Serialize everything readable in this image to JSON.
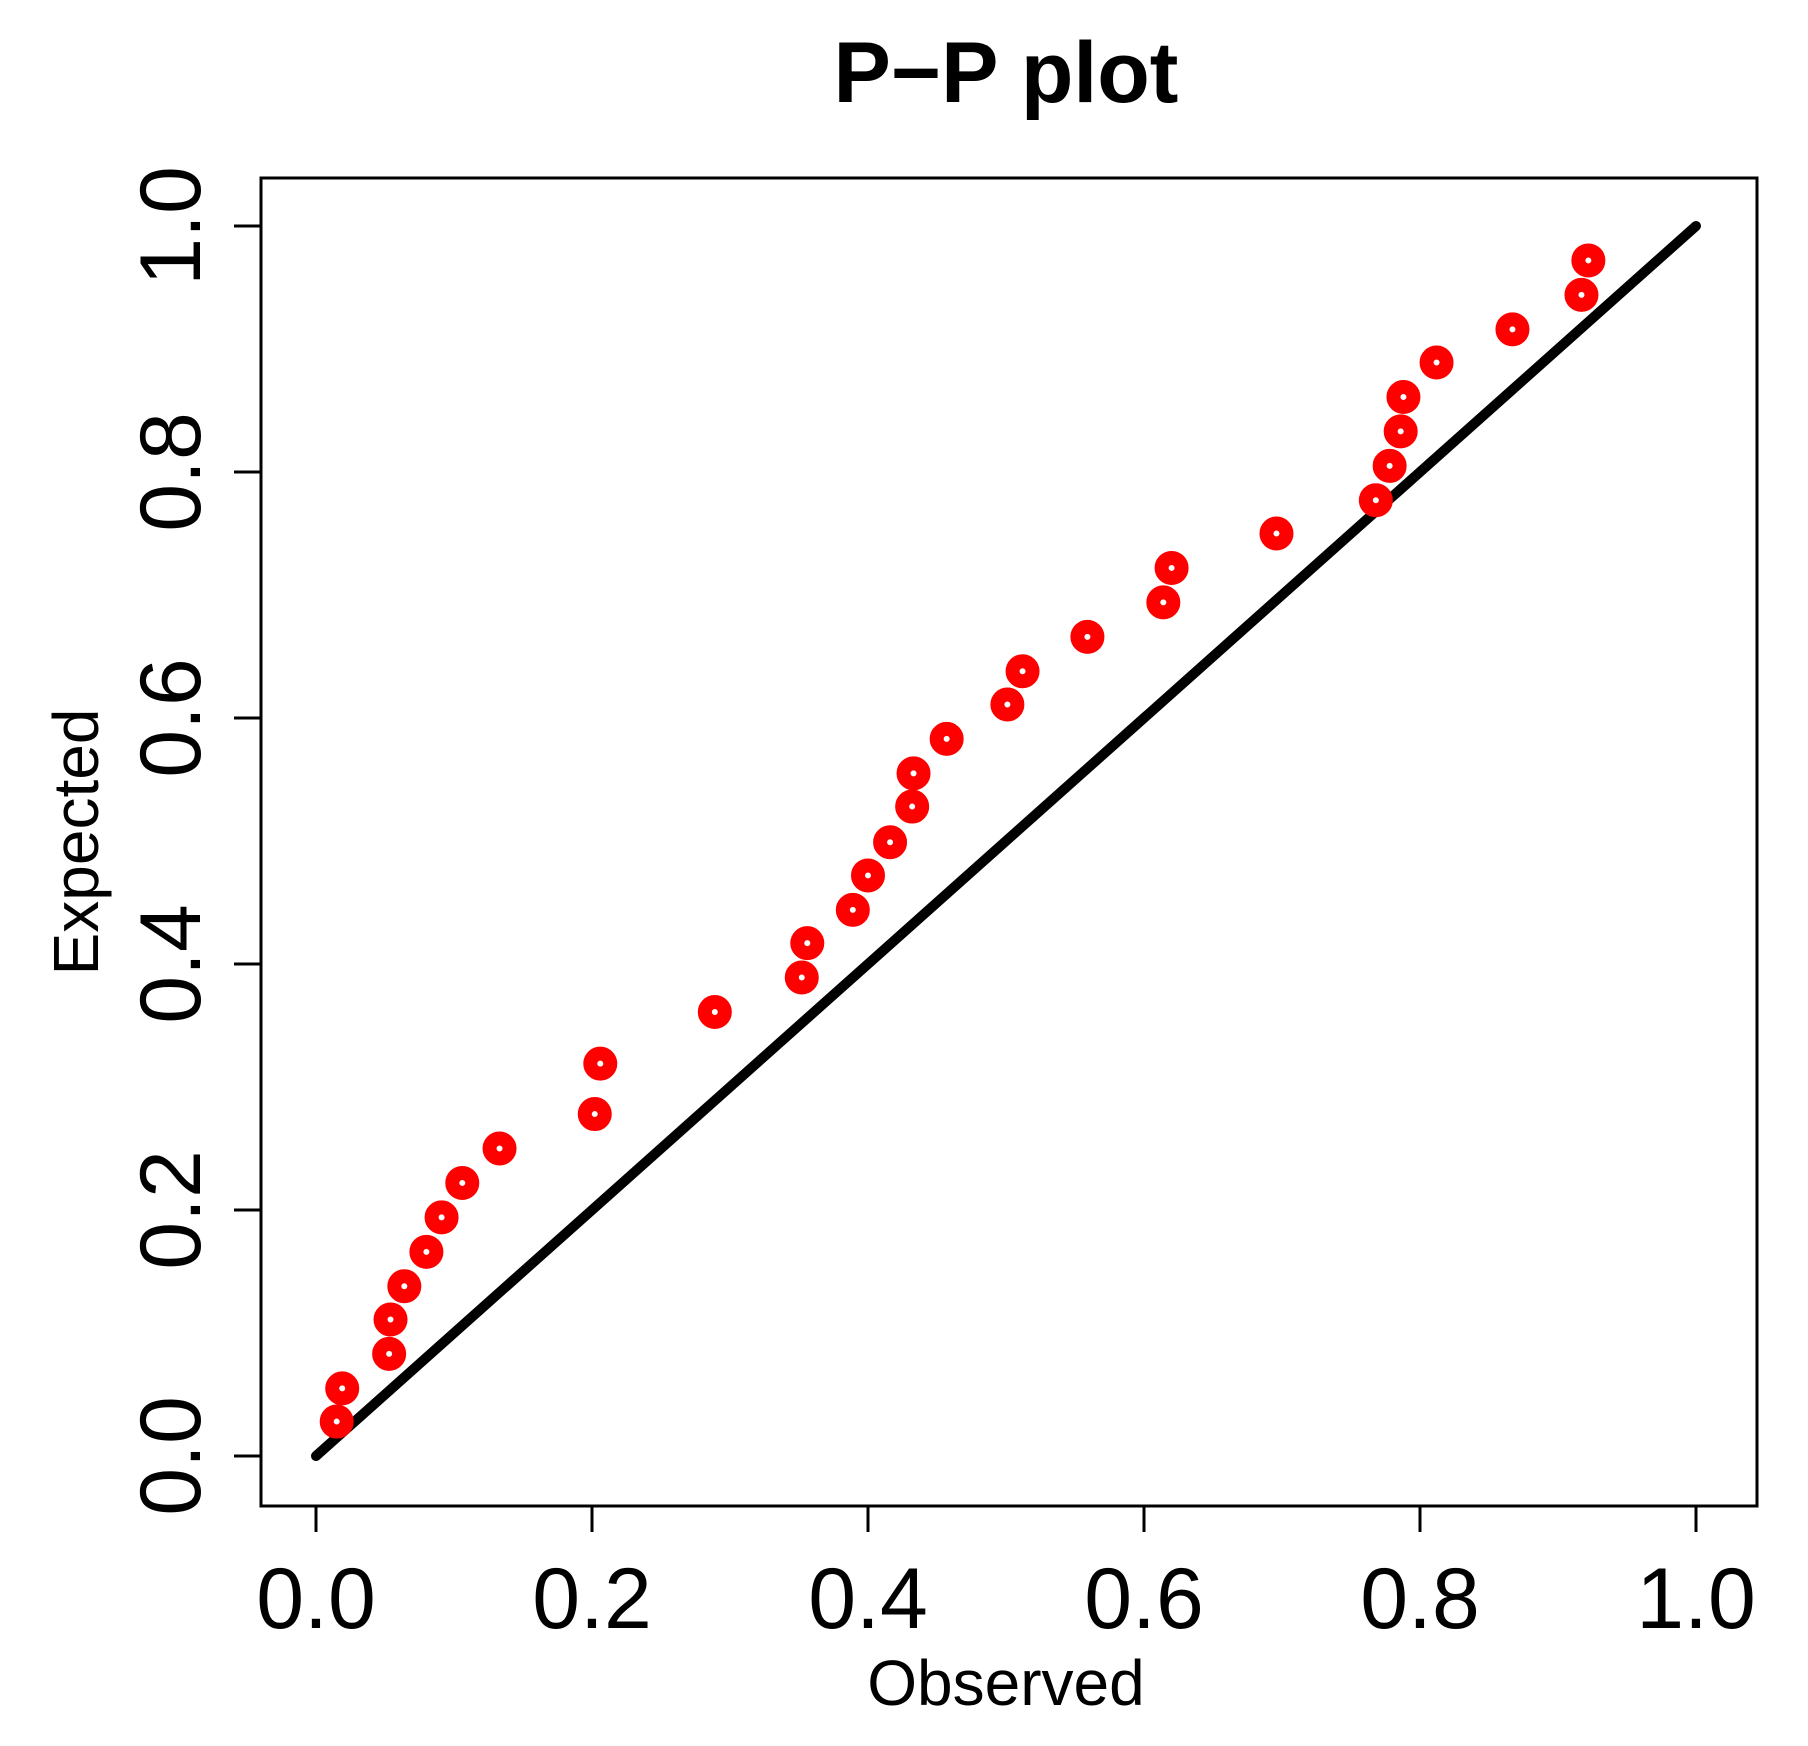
{
  "chart_data": {
    "type": "scatter",
    "title": "P−P plot",
    "xlabel": "Observed",
    "ylabel": "Expected",
    "xlim": [
      0.0,
      1.0
    ],
    "ylim": [
      0.0,
      1.0
    ],
    "grid": false,
    "legend": null,
    "x_ticks": [
      "0.0",
      "0.2",
      "0.4",
      "0.6",
      "0.8",
      "1.0"
    ],
    "y_ticks": [
      "0.0",
      "0.2",
      "0.4",
      "0.6",
      "0.8",
      "1.0"
    ],
    "reference_line": {
      "name": "y = x",
      "from": [
        0,
        0
      ],
      "to": [
        1,
        1
      ],
      "color": "#000000"
    },
    "series": [
      {
        "name": "P-P points",
        "color": "#ff0000",
        "marker": "open-circle",
        "points": [
          {
            "x": 0.015,
            "y": 0.028
          },
          {
            "x": 0.019,
            "y": 0.055
          },
          {
            "x": 0.053,
            "y": 0.083
          },
          {
            "x": 0.054,
            "y": 0.111
          },
          {
            "x": 0.064,
            "y": 0.138
          },
          {
            "x": 0.08,
            "y": 0.166
          },
          {
            "x": 0.091,
            "y": 0.194
          },
          {
            "x": 0.106,
            "y": 0.222
          },
          {
            "x": 0.133,
            "y": 0.25
          },
          {
            "x": 0.202,
            "y": 0.278
          },
          {
            "x": 0.206,
            "y": 0.319
          },
          {
            "x": 0.289,
            "y": 0.361
          },
          {
            "x": 0.352,
            "y": 0.389
          },
          {
            "x": 0.356,
            "y": 0.417
          },
          {
            "x": 0.389,
            "y": 0.444
          },
          {
            "x": 0.4,
            "y": 0.472
          },
          {
            "x": 0.416,
            "y": 0.499
          },
          {
            "x": 0.432,
            "y": 0.528
          },
          {
            "x": 0.433,
            "y": 0.555
          },
          {
            "x": 0.457,
            "y": 0.583
          },
          {
            "x": 0.501,
            "y": 0.611
          },
          {
            "x": 0.512,
            "y": 0.638
          },
          {
            "x": 0.559,
            "y": 0.666
          },
          {
            "x": 0.614,
            "y": 0.694
          },
          {
            "x": 0.62,
            "y": 0.722
          },
          {
            "x": 0.696,
            "y": 0.75
          },
          {
            "x": 0.768,
            "y": 0.777
          },
          {
            "x": 0.778,
            "y": 0.805
          },
          {
            "x": 0.786,
            "y": 0.833
          },
          {
            "x": 0.788,
            "y": 0.861
          },
          {
            "x": 0.812,
            "y": 0.889
          },
          {
            "x": 0.867,
            "y": 0.916
          },
          {
            "x": 0.917,
            "y": 0.944
          },
          {
            "x": 0.922,
            "y": 0.972
          }
        ]
      }
    ]
  }
}
